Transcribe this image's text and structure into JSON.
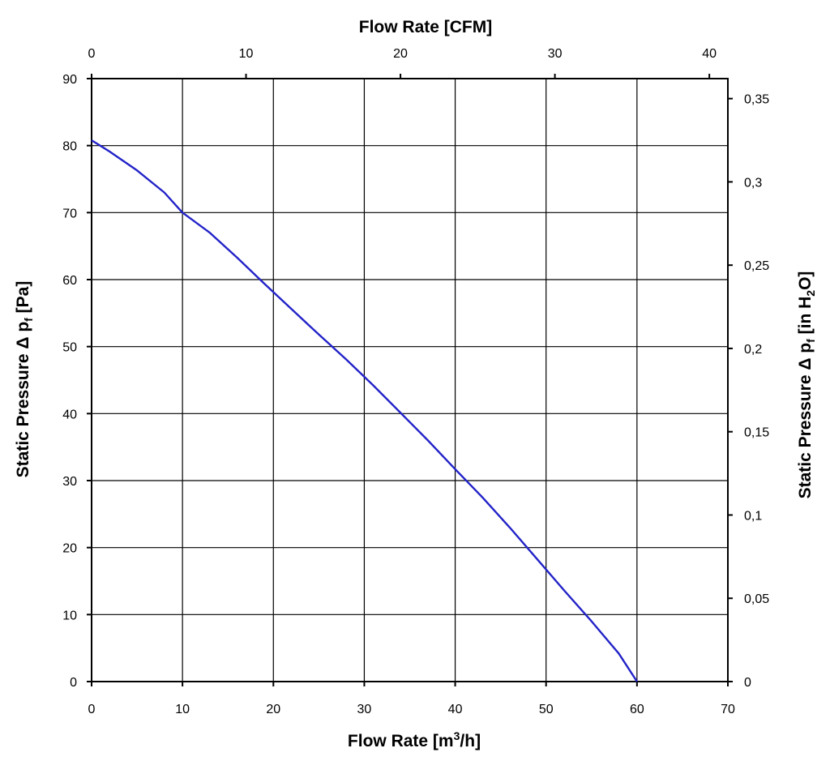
{
  "chart_data": {
    "type": "line",
    "axes": {
      "bottom": {
        "label": "Flow Rate [m³/h]",
        "label_main": "Flow Rate [m",
        "label_sup": "3",
        "label_end": "/h]",
        "range": [
          0,
          70
        ],
        "ticks": [
          0,
          10,
          20,
          30,
          40,
          50,
          60,
          70
        ],
        "tick_labels": [
          "0",
          "10",
          "20",
          "30",
          "40",
          "50",
          "60",
          "70"
        ]
      },
      "top": {
        "label": "Flow Rate [CFM]",
        "range": [
          0,
          41.2
        ],
        "ticks": [
          0,
          10,
          20,
          30,
          40
        ],
        "tick_labels": [
          "0",
          "10",
          "20",
          "30",
          "40"
        ]
      },
      "left": {
        "label": "Static Pressure Δ pf [Pa]",
        "label_main": "Static Pressure Δ p",
        "label_sub": "f",
        "label_end": " [Pa]",
        "range": [
          0,
          90
        ],
        "ticks": [
          0,
          10,
          20,
          30,
          40,
          50,
          60,
          70,
          80,
          90
        ],
        "tick_labels": [
          "0",
          "10",
          "20",
          "30",
          "40",
          "50",
          "60",
          "70",
          "80",
          "90"
        ]
      },
      "right": {
        "label": "Static Pressure Δ pf [in H2O]",
        "label_main": "Static Pressure Δ p",
        "label_sub": "f",
        "label_mid": " [in H",
        "label_sub2": "2",
        "label_end": "O]",
        "range": [
          0,
          0.362
        ],
        "ticks": [
          0,
          0.05,
          0.1,
          0.15,
          0.2,
          0.25,
          0.3,
          0.35
        ],
        "tick_labels": [
          "0",
          "0,05",
          "0,1",
          "0,15",
          "0,2",
          "0,25",
          "0,3",
          "0,35"
        ]
      }
    },
    "grid": true,
    "series": [
      {
        "color": "#2222c8",
        "x": [
          0,
          2,
          5,
          8,
          10,
          13,
          16,
          19,
          22,
          25,
          28,
          31,
          34,
          37,
          40,
          43,
          46,
          49,
          52,
          55,
          58,
          60
        ],
        "y": [
          80.8,
          79.1,
          76.3,
          73.0,
          70.0,
          67.0,
          63.3,
          59.4,
          55.6,
          51.8,
          48.1,
          44.2,
          40.1,
          36.0,
          31.7,
          27.5,
          23.0,
          18.3,
          13.6,
          9.0,
          4.2,
          0
        ]
      }
    ]
  }
}
